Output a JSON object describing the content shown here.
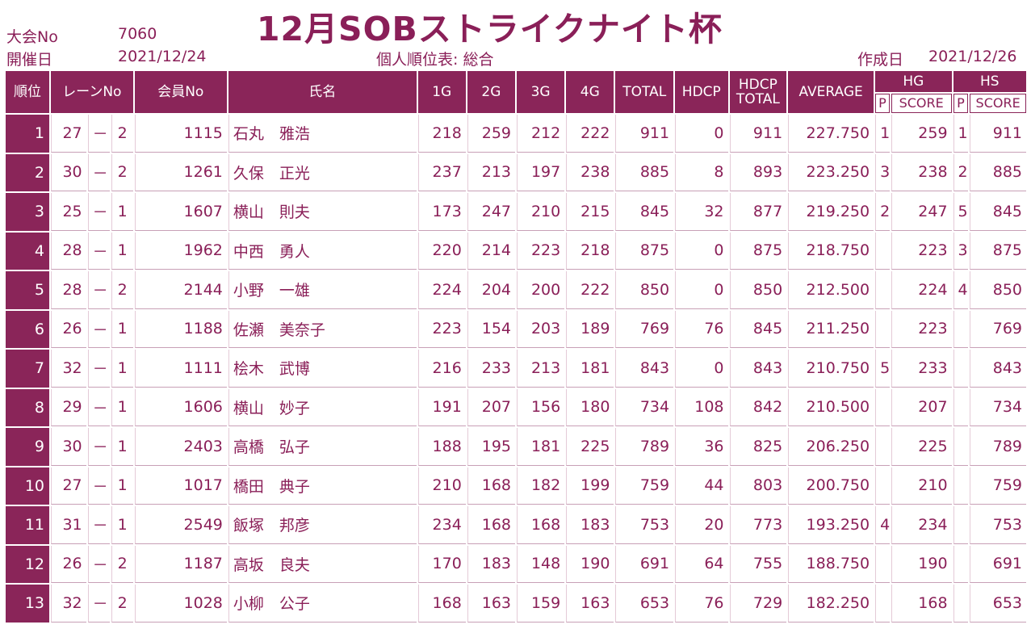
{
  "header": {
    "title": "12月SOBストライクナイト杯",
    "tournament_no_label": "大会No",
    "tournament_no": "7060",
    "date_label": "開催日",
    "date": "2021/12/24",
    "report_title": "個人順位表: 総合",
    "created_label": "作成日",
    "created_date": "2021/12/26"
  },
  "columns": {
    "rank": "順位",
    "lane": "レーンNo",
    "member": "会員No",
    "name": "氏名",
    "g1": "1G",
    "g2": "2G",
    "g3": "3G",
    "g4": "4G",
    "total": "TOTAL",
    "hdcp": "HDCP",
    "hdcp_total_1": "HDCP",
    "hdcp_total_2": "TOTAL",
    "average": "AVERAGE",
    "hg": "HG",
    "hs": "HS",
    "p": "P",
    "score": "SCORE"
  },
  "rows": [
    {
      "rank": "1",
      "lane": "27",
      "dash": "－",
      "box": "2",
      "member": "1115",
      "name": "石丸　雅浩",
      "g1": "218",
      "g2": "259",
      "g3": "212",
      "g4": "222",
      "total": "911",
      "hdcp": "0",
      "hdcp_total": "911",
      "average": "227.750",
      "hg_p": "1",
      "hg_score": "259",
      "hs_p": "1",
      "hs_score": "911"
    },
    {
      "rank": "2",
      "lane": "30",
      "dash": "－",
      "box": "2",
      "member": "1261",
      "name": "久保　正光",
      "g1": "237",
      "g2": "213",
      "g3": "197",
      "g4": "238",
      "total": "885",
      "hdcp": "8",
      "hdcp_total": "893",
      "average": "223.250",
      "hg_p": "3",
      "hg_score": "238",
      "hs_p": "2",
      "hs_score": "885"
    },
    {
      "rank": "3",
      "lane": "25",
      "dash": "－",
      "box": "1",
      "member": "1607",
      "name": "横山　則夫",
      "g1": "173",
      "g2": "247",
      "g3": "210",
      "g4": "215",
      "total": "845",
      "hdcp": "32",
      "hdcp_total": "877",
      "average": "219.250",
      "hg_p": "2",
      "hg_score": "247",
      "hs_p": "5",
      "hs_score": "845"
    },
    {
      "rank": "4",
      "lane": "28",
      "dash": "－",
      "box": "1",
      "member": "1962",
      "name": "中西　勇人",
      "g1": "220",
      "g2": "214",
      "g3": "223",
      "g4": "218",
      "total": "875",
      "hdcp": "0",
      "hdcp_total": "875",
      "average": "218.750",
      "hg_p": "",
      "hg_score": "223",
      "hs_p": "3",
      "hs_score": "875"
    },
    {
      "rank": "5",
      "lane": "28",
      "dash": "－",
      "box": "2",
      "member": "2144",
      "name": "小野　一雄",
      "g1": "224",
      "g2": "204",
      "g3": "200",
      "g4": "222",
      "total": "850",
      "hdcp": "0",
      "hdcp_total": "850",
      "average": "212.500",
      "hg_p": "",
      "hg_score": "224",
      "hs_p": "4",
      "hs_score": "850"
    },
    {
      "rank": "6",
      "lane": "26",
      "dash": "－",
      "box": "1",
      "member": "1188",
      "name": "佐瀬　美奈子",
      "g1": "223",
      "g2": "154",
      "g3": "203",
      "g4": "189",
      "total": "769",
      "hdcp": "76",
      "hdcp_total": "845",
      "average": "211.250",
      "hg_p": "",
      "hg_score": "223",
      "hs_p": "",
      "hs_score": "769"
    },
    {
      "rank": "7",
      "lane": "32",
      "dash": "－",
      "box": "1",
      "member": "1111",
      "name": "桧木　武博",
      "g1": "216",
      "g2": "233",
      "g3": "213",
      "g4": "181",
      "total": "843",
      "hdcp": "0",
      "hdcp_total": "843",
      "average": "210.750",
      "hg_p": "5",
      "hg_score": "233",
      "hs_p": "",
      "hs_score": "843"
    },
    {
      "rank": "8",
      "lane": "29",
      "dash": "－",
      "box": "1",
      "member": "1606",
      "name": "横山　妙子",
      "g1": "191",
      "g2": "207",
      "g3": "156",
      "g4": "180",
      "total": "734",
      "hdcp": "108",
      "hdcp_total": "842",
      "average": "210.500",
      "hg_p": "",
      "hg_score": "207",
      "hs_p": "",
      "hs_score": "734"
    },
    {
      "rank": "9",
      "lane": "30",
      "dash": "－",
      "box": "1",
      "member": "2403",
      "name": "高橋　弘子",
      "g1": "188",
      "g2": "195",
      "g3": "181",
      "g4": "225",
      "total": "789",
      "hdcp": "36",
      "hdcp_total": "825",
      "average": "206.250",
      "hg_p": "",
      "hg_score": "225",
      "hs_p": "",
      "hs_score": "789"
    },
    {
      "rank": "10",
      "lane": "27",
      "dash": "－",
      "box": "1",
      "member": "1017",
      "name": "橋田　典子",
      "g1": "210",
      "g2": "168",
      "g3": "182",
      "g4": "199",
      "total": "759",
      "hdcp": "44",
      "hdcp_total": "803",
      "average": "200.750",
      "hg_p": "",
      "hg_score": "210",
      "hs_p": "",
      "hs_score": "759"
    },
    {
      "rank": "11",
      "lane": "31",
      "dash": "－",
      "box": "1",
      "member": "2549",
      "name": "飯塚　邦彦",
      "g1": "234",
      "g2": "168",
      "g3": "168",
      "g4": "183",
      "total": "753",
      "hdcp": "20",
      "hdcp_total": "773",
      "average": "193.250",
      "hg_p": "4",
      "hg_score": "234",
      "hs_p": "",
      "hs_score": "753"
    },
    {
      "rank": "12",
      "lane": "26",
      "dash": "－",
      "box": "2",
      "member": "1187",
      "name": "高坂　良夫",
      "g1": "170",
      "g2": "183",
      "g3": "148",
      "g4": "190",
      "total": "691",
      "hdcp": "64",
      "hdcp_total": "755",
      "average": "188.750",
      "hg_p": "",
      "hg_score": "190",
      "hs_p": "",
      "hs_score": "691"
    },
    {
      "rank": "13",
      "lane": "32",
      "dash": "－",
      "box": "2",
      "member": "1028",
      "name": "小柳　公子",
      "g1": "168",
      "g2": "163",
      "g3": "159",
      "g4": "163",
      "total": "653",
      "hdcp": "76",
      "hdcp_total": "729",
      "average": "182.250",
      "hg_p": "",
      "hg_score": "168",
      "hs_p": "",
      "hs_score": "653"
    }
  ]
}
